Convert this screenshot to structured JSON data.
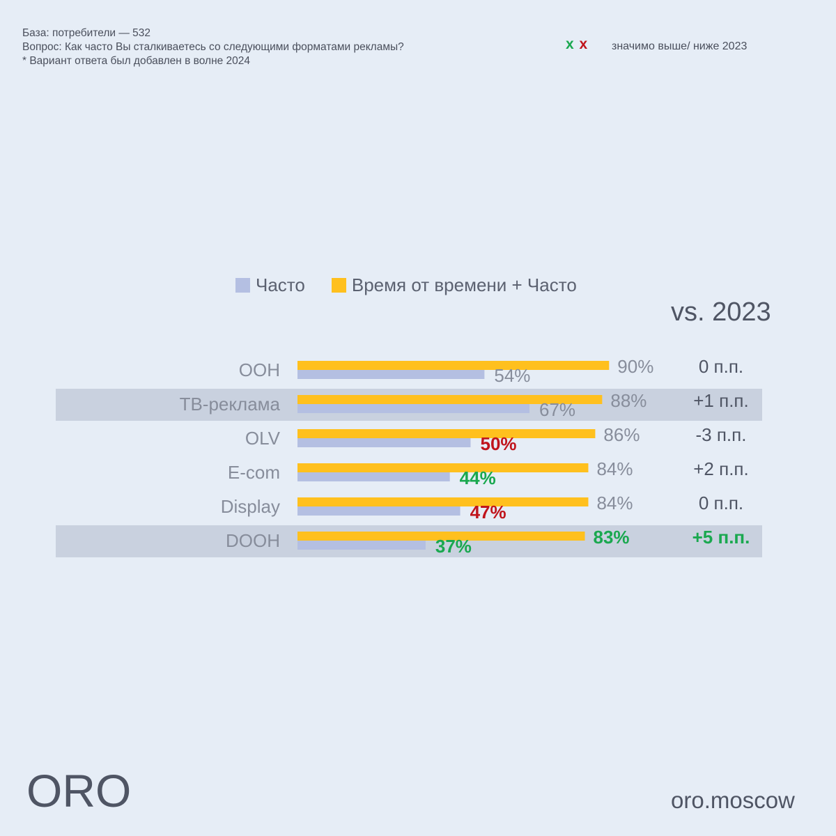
{
  "notes": {
    "base": "База: потребители — 532",
    "question": "Вопрос: Как часто Вы сталкиваетесь со следующими форматами рекламы?",
    "footnote": "* Вариант ответа был добавлен в волне 2024"
  },
  "significance": {
    "up_mark": "x",
    "down_mark": "x",
    "label": "значимо выше/ ниже 2023"
  },
  "colors": {
    "often": "#b4bfe2",
    "sometimes_often": "#ffc01e",
    "label_grey": "#878d9b",
    "up": "#1aa84f",
    "down": "#c0141c",
    "band": "#c9d1df"
  },
  "chart_data": {
    "type": "bar",
    "orientation": "horizontal",
    "categories": [
      "OOH",
      "ТВ-реклама",
      "OLV",
      "E-com",
      "Display",
      "DOOH"
    ],
    "series": [
      {
        "name": "Время от времени + Часто",
        "values": [
          90,
          88,
          86,
          84,
          84,
          83
        ],
        "labels": [
          "90%",
          "88%",
          "86%",
          "84%",
          "84%",
          "83%"
        ],
        "significance": [
          "none",
          "none",
          "none",
          "none",
          "none",
          "up"
        ]
      },
      {
        "name": "Часто",
        "values": [
          54,
          67,
          50,
          44,
          47,
          37
        ],
        "labels": [
          "54%",
          "67%",
          "50%",
          "44%",
          "47%",
          "37%"
        ],
        "significance": [
          "none",
          "none",
          "down",
          "up",
          "down",
          "up"
        ]
      }
    ],
    "vs_title": "vs. 2023",
    "vs_2023": [
      "0 п.п.",
      "+1 п.п.",
      "-3 п.п.",
      "+2 п.п.",
      "0 п.п.",
      "+5 п.п."
    ],
    "vs_significance": [
      "none",
      "none",
      "none",
      "none",
      "none",
      "up"
    ],
    "highlighted_rows": [
      1,
      5
    ],
    "xlim": [
      0,
      100
    ],
    "legend_position": "top"
  },
  "footer": {
    "logo": "ORO",
    "site": "oro.moscow"
  }
}
